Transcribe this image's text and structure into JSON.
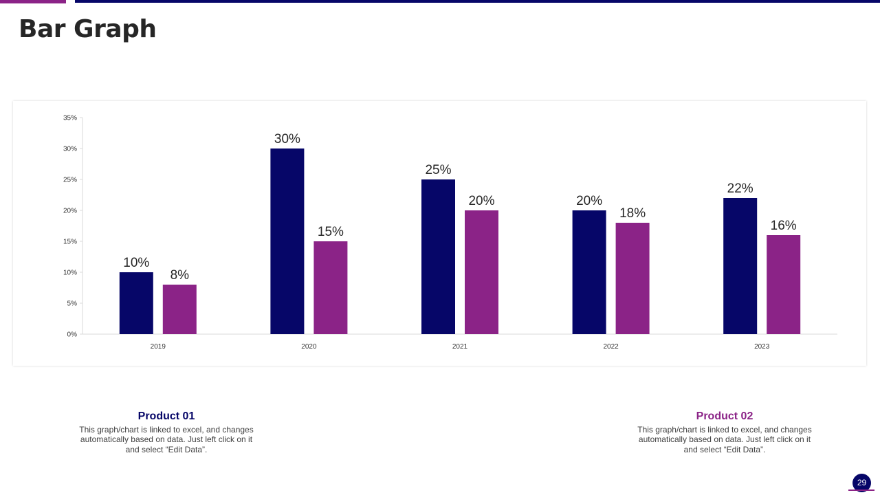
{
  "slide": {
    "title": "Bar Graph",
    "page_number": "29"
  },
  "colors": {
    "product_01": "#060668",
    "product_02": "#8B2387",
    "accent_purple": "#8B2387",
    "accent_navy": "#060668"
  },
  "products": [
    {
      "title": "Product 01",
      "description": "This graph/chart is linked to excel, and changes automatically based on data. Just left click on it and select “Edit Data”."
    },
    {
      "title": "Product 02",
      "description": "This graph/chart is linked to excel, and changes automatically based on data. Just left click on it and select “Edit Data”."
    }
  ],
  "chart_data": {
    "type": "bar",
    "title": "",
    "xlabel": "",
    "ylabel": "",
    "categories": [
      "2019",
      "2020",
      "2021",
      "2022",
      "2023"
    ],
    "series": [
      {
        "name": "Product 01",
        "values": [
          10,
          30,
          25,
          20,
          22
        ],
        "color": "#060668"
      },
      {
        "name": "Product 02",
        "values": [
          8,
          15,
          20,
          18,
          16
        ],
        "color": "#8B2387"
      }
    ],
    "ylim": [
      0,
      35
    ],
    "yticks": [
      0,
      5,
      10,
      15,
      20,
      25,
      30,
      35
    ],
    "value_suffix": "%",
    "grid": false,
    "legend": "none"
  }
}
